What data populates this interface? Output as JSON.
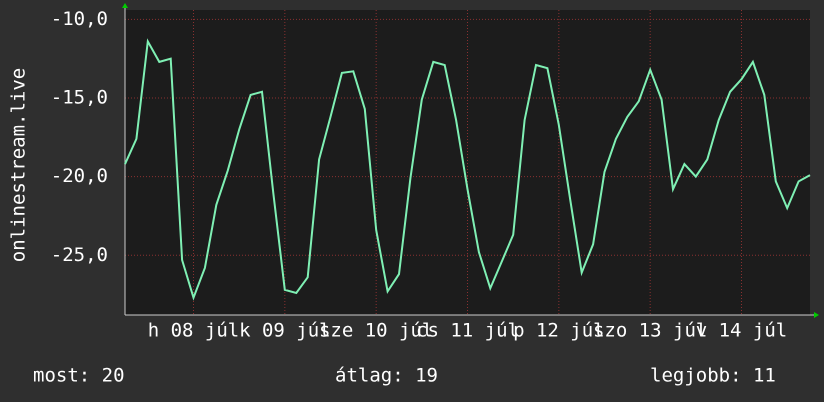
{
  "chart_data": {
    "type": "line",
    "ylabel": "onlinestream.live",
    "x": [
      -18,
      -15,
      -12,
      -9,
      -6,
      -3,
      0,
      3,
      6,
      9,
      12,
      15,
      18,
      21,
      24,
      27,
      30,
      33,
      36,
      39,
      42,
      45,
      48,
      51,
      54,
      57,
      60,
      63,
      66,
      69,
      72,
      75,
      78,
      81,
      84,
      87,
      90,
      93,
      96,
      99,
      102,
      105,
      108,
      111,
      114,
      117,
      120,
      123,
      126,
      129,
      132,
      135,
      138,
      141,
      144,
      147,
      150,
      153,
      156,
      159,
      162
    ],
    "series": [
      {
        "name": "onlinestream.live",
        "color": "#7ff0b4",
        "values": [
          -19.2,
          -17.6,
          -11.4,
          -12.7,
          -12.5,
          -25.3,
          -27.7,
          -25.8,
          -21.8,
          -19.6,
          -17.0,
          -14.8,
          -14.6,
          -21.1,
          -27.2,
          -27.4,
          -26.4,
          -18.9,
          -16.2,
          -13.4,
          -13.3,
          -15.7,
          -23.4,
          -27.3,
          -26.2,
          -20.1,
          -15.1,
          -12.7,
          -12.9,
          -16.4,
          -20.8,
          -24.8,
          -27.1,
          -25.4,
          -23.7,
          -16.4,
          -12.9,
          -13.1,
          -16.7,
          -21.5,
          -26.1,
          -24.3,
          -19.7,
          -17.6,
          -16.2,
          -15.2,
          -13.2,
          -15.1,
          -20.8,
          -19.2,
          -20.0,
          -18.9,
          -16.4,
          -14.6,
          -13.8,
          -12.7,
          -14.8,
          -20.3,
          -22.0,
          -20.3,
          -19.9
        ]
      }
    ],
    "xlim": [
      -18,
      162
    ],
    "xticks": [
      {
        "value": 0,
        "label": "h 08 júl"
      },
      {
        "value": 24,
        "label": "k 09 júl"
      },
      {
        "value": 48,
        "label": "sze 10 júl"
      },
      {
        "value": 72,
        "label": "cs 11 júl"
      },
      {
        "value": 96,
        "label": "p 12 júl"
      },
      {
        "value": 120,
        "label": "szo 13 júl"
      },
      {
        "value": 144,
        "label": "v 14 júl"
      }
    ],
    "ylim": [
      -28.8,
      -9.4
    ],
    "yticks": [
      {
        "value": -25,
        "label": "-25,0"
      },
      {
        "value": -20,
        "label": "-20,0"
      },
      {
        "value": -15,
        "label": "-15,0"
      },
      {
        "value": -10,
        "label": "-10,0"
      }
    ],
    "grid": true,
    "footer": [
      "most: 20",
      "átlag: 19",
      "legjobb: 11"
    ]
  }
}
